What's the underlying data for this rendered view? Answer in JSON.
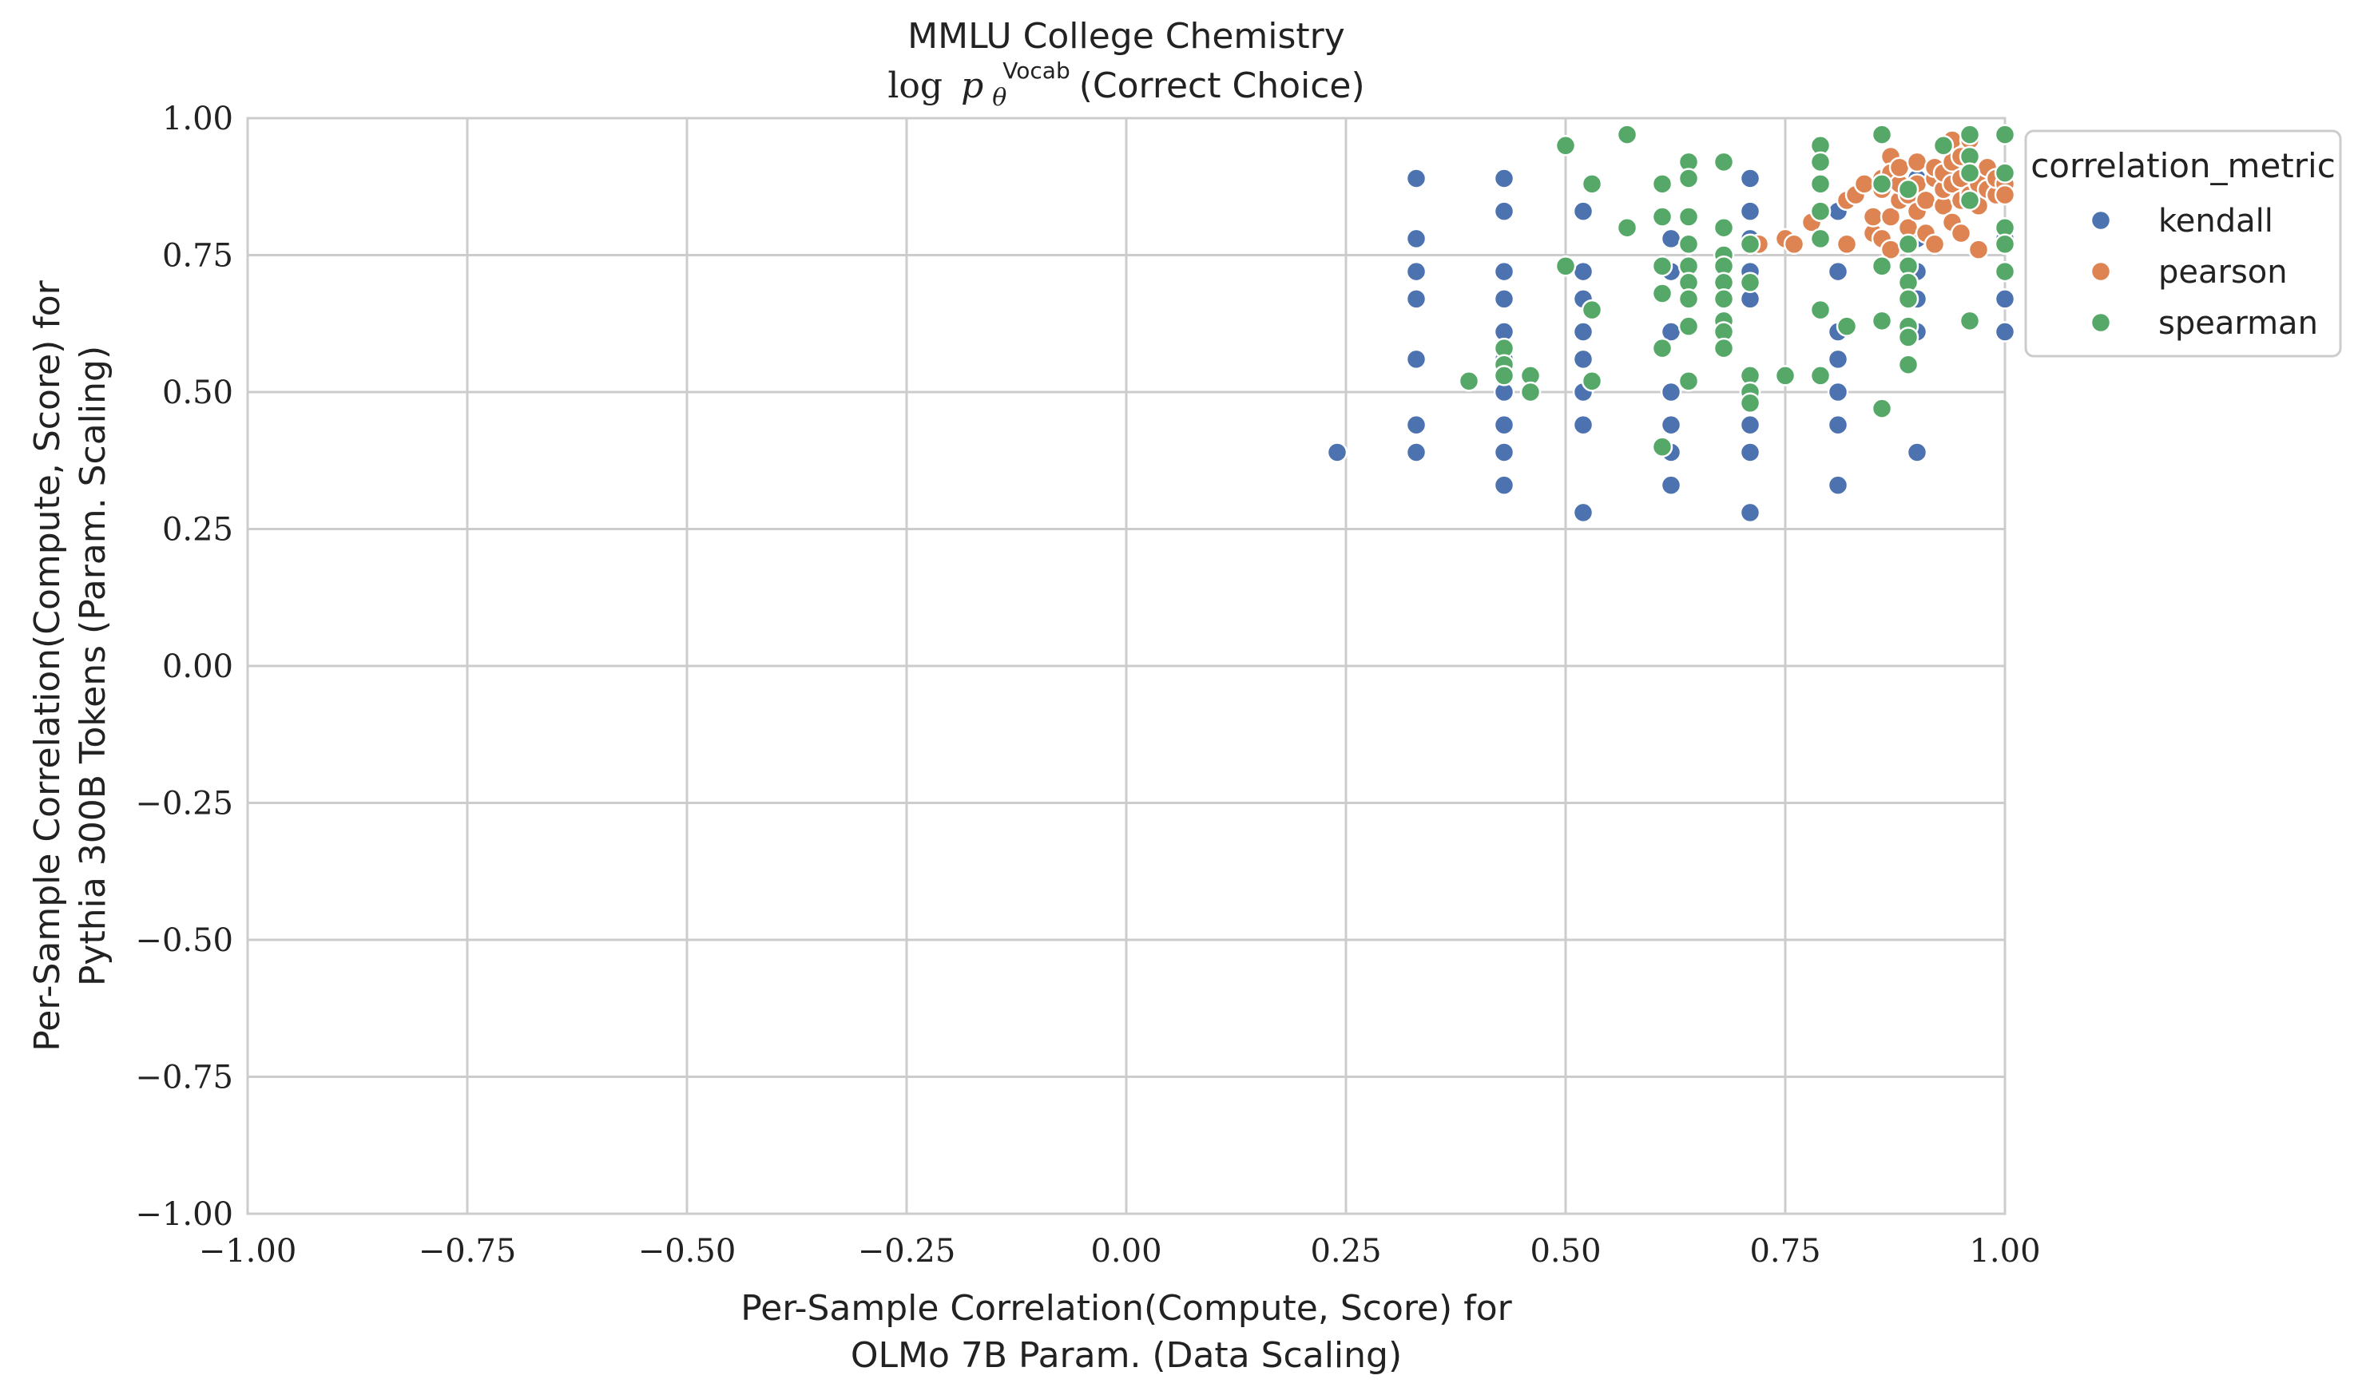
{
  "chart_data": {
    "type": "scatter",
    "title_line1": "MMLU College Chemistry",
    "title_log": "log",
    "title_p": "p",
    "title_sub": "θ",
    "title_sup": "Vocab",
    "title_tail": "(Correct Choice)",
    "xlabel_line1": "Per-Sample Correlation(Compute, Score) for",
    "xlabel_line2": "OLMo 7B Param. (Data Scaling)",
    "ylabel_line1": "Per-Sample Correlation(Compute, Score) for",
    "ylabel_line2": "Pythia 300B Tokens (Param. Scaling)",
    "xlim": [
      -1.0,
      1.0
    ],
    "ylim": [
      -1.0,
      1.0
    ],
    "xticks": [
      "−1.00",
      "−0.75",
      "−0.50",
      "−0.25",
      "0.00",
      "0.25",
      "0.50",
      "0.75",
      "1.00"
    ],
    "yticks": [
      "−1.00",
      "−0.75",
      "−0.50",
      "−0.25",
      "0.00",
      "0.25",
      "0.50",
      "0.75",
      "1.00"
    ],
    "grid": true,
    "legend_title": "correlation_metric",
    "legend_placement": "outside-right-top",
    "series": [
      {
        "name": "kendall",
        "color": "#4c72b0",
        "points": [
          [
            0.24,
            0.39
          ],
          [
            0.33,
            0.89
          ],
          [
            0.33,
            0.78
          ],
          [
            0.33,
            0.72
          ],
          [
            0.33,
            0.67
          ],
          [
            0.33,
            0.56
          ],
          [
            0.33,
            0.44
          ],
          [
            0.33,
            0.39
          ],
          [
            0.43,
            0.89
          ],
          [
            0.43,
            0.83
          ],
          [
            0.43,
            0.72
          ],
          [
            0.43,
            0.67
          ],
          [
            0.43,
            0.61
          ],
          [
            0.43,
            0.56
          ],
          [
            0.43,
            0.5
          ],
          [
            0.43,
            0.44
          ],
          [
            0.43,
            0.39
          ],
          [
            0.43,
            0.33
          ],
          [
            0.52,
            0.83
          ],
          [
            0.52,
            0.72
          ],
          [
            0.52,
            0.67
          ],
          [
            0.52,
            0.61
          ],
          [
            0.52,
            0.56
          ],
          [
            0.52,
            0.5
          ],
          [
            0.52,
            0.44
          ],
          [
            0.52,
            0.28
          ],
          [
            0.62,
            0.78
          ],
          [
            0.62,
            0.72
          ],
          [
            0.62,
            0.61
          ],
          [
            0.62,
            0.5
          ],
          [
            0.62,
            0.44
          ],
          [
            0.62,
            0.39
          ],
          [
            0.62,
            0.33
          ],
          [
            0.71,
            0.89
          ],
          [
            0.71,
            0.83
          ],
          [
            0.71,
            0.78
          ],
          [
            0.71,
            0.72
          ],
          [
            0.71,
            0.67
          ],
          [
            0.71,
            0.5
          ],
          [
            0.71,
            0.44
          ],
          [
            0.71,
            0.39
          ],
          [
            0.71,
            0.28
          ],
          [
            0.81,
            0.83
          ],
          [
            0.81,
            0.72
          ],
          [
            0.81,
            0.61
          ],
          [
            0.81,
            0.56
          ],
          [
            0.81,
            0.5
          ],
          [
            0.81,
            0.44
          ],
          [
            0.81,
            0.33
          ],
          [
            0.9,
            0.89
          ],
          [
            0.9,
            0.83
          ],
          [
            0.9,
            0.78
          ],
          [
            0.9,
            0.72
          ],
          [
            0.9,
            0.67
          ],
          [
            0.9,
            0.61
          ],
          [
            0.9,
            0.39
          ],
          [
            1.0,
            0.89
          ],
          [
            1.0,
            0.78
          ],
          [
            1.0,
            0.67
          ],
          [
            1.0,
            0.61
          ]
        ]
      },
      {
        "name": "pearson",
        "color": "#dd8452",
        "points": [
          [
            0.72,
            0.77
          ],
          [
            0.75,
            0.78
          ],
          [
            0.76,
            0.77
          ],
          [
            0.78,
            0.81
          ],
          [
            0.79,
            0.83
          ],
          [
            0.82,
            0.77
          ],
          [
            0.82,
            0.85
          ],
          [
            0.83,
            0.86
          ],
          [
            0.84,
            0.88
          ],
          [
            0.85,
            0.79
          ],
          [
            0.85,
            0.82
          ],
          [
            0.86,
            0.78
          ],
          [
            0.86,
            0.87
          ],
          [
            0.86,
            0.89
          ],
          [
            0.87,
            0.93
          ],
          [
            0.87,
            0.9
          ],
          [
            0.87,
            0.82
          ],
          [
            0.87,
            0.76
          ],
          [
            0.88,
            0.85
          ],
          [
            0.88,
            0.88
          ],
          [
            0.88,
            0.91
          ],
          [
            0.89,
            0.8
          ],
          [
            0.89,
            0.86
          ],
          [
            0.9,
            0.88
          ],
          [
            0.9,
            0.92
          ],
          [
            0.9,
            0.83
          ],
          [
            0.91,
            0.79
          ],
          [
            0.91,
            0.85
          ],
          [
            0.92,
            0.89
          ],
          [
            0.92,
            0.91
          ],
          [
            0.92,
            0.77
          ],
          [
            0.93,
            0.84
          ],
          [
            0.93,
            0.87
          ],
          [
            0.93,
            0.9
          ],
          [
            0.94,
            0.88
          ],
          [
            0.94,
            0.92
          ],
          [
            0.94,
            0.96
          ],
          [
            0.94,
            0.81
          ],
          [
            0.95,
            0.85
          ],
          [
            0.95,
            0.89
          ],
          [
            0.95,
            0.93
          ],
          [
            0.95,
            0.79
          ],
          [
            0.96,
            0.86
          ],
          [
            0.96,
            0.9
          ],
          [
            0.96,
            0.96
          ],
          [
            0.97,
            0.84
          ],
          [
            0.97,
            0.76
          ],
          [
            0.97,
            0.88
          ],
          [
            0.98,
            0.87
          ],
          [
            0.98,
            0.91
          ],
          [
            0.99,
            0.86
          ],
          [
            0.99,
            0.89
          ],
          [
            1.0,
            0.88
          ],
          [
            1.0,
            0.86
          ]
        ]
      },
      {
        "name": "spearman",
        "color": "#55a868",
        "points": [
          [
            0.39,
            0.52
          ],
          [
            0.43,
            0.58
          ],
          [
            0.43,
            0.55
          ],
          [
            0.43,
            0.53
          ],
          [
            0.46,
            0.53
          ],
          [
            0.46,
            0.5
          ],
          [
            0.5,
            0.95
          ],
          [
            0.5,
            0.73
          ],
          [
            0.53,
            0.88
          ],
          [
            0.53,
            0.65
          ],
          [
            0.53,
            0.52
          ],
          [
            0.57,
            0.97
          ],
          [
            0.57,
            0.8
          ],
          [
            0.61,
            0.88
          ],
          [
            0.61,
            0.82
          ],
          [
            0.61,
            0.73
          ],
          [
            0.61,
            0.68
          ],
          [
            0.61,
            0.58
          ],
          [
            0.61,
            0.4
          ],
          [
            0.64,
            0.92
          ],
          [
            0.64,
            0.89
          ],
          [
            0.64,
            0.82
          ],
          [
            0.64,
            0.77
          ],
          [
            0.64,
            0.73
          ],
          [
            0.64,
            0.7
          ],
          [
            0.64,
            0.67
          ],
          [
            0.64,
            0.62
          ],
          [
            0.64,
            0.52
          ],
          [
            0.68,
            0.92
          ],
          [
            0.68,
            0.8
          ],
          [
            0.68,
            0.75
          ],
          [
            0.68,
            0.73
          ],
          [
            0.68,
            0.7
          ],
          [
            0.68,
            0.67
          ],
          [
            0.68,
            0.63
          ],
          [
            0.68,
            0.61
          ],
          [
            0.68,
            0.58
          ],
          [
            0.71,
            0.77
          ],
          [
            0.71,
            0.7
          ],
          [
            0.71,
            0.53
          ],
          [
            0.71,
            0.5
          ],
          [
            0.71,
            0.48
          ],
          [
            0.75,
            0.53
          ],
          [
            0.79,
            0.95
          ],
          [
            0.79,
            0.92
          ],
          [
            0.79,
            0.88
          ],
          [
            0.79,
            0.83
          ],
          [
            0.79,
            0.78
          ],
          [
            0.79,
            0.65
          ],
          [
            0.79,
            0.53
          ],
          [
            0.82,
            0.62
          ],
          [
            0.86,
            0.97
          ],
          [
            0.86,
            0.88
          ],
          [
            0.86,
            0.73
          ],
          [
            0.86,
            0.63
          ],
          [
            0.86,
            0.47
          ],
          [
            0.89,
            0.87
          ],
          [
            0.89,
            0.77
          ],
          [
            0.89,
            0.73
          ],
          [
            0.89,
            0.7
          ],
          [
            0.89,
            0.67
          ],
          [
            0.89,
            0.62
          ],
          [
            0.89,
            0.6
          ],
          [
            0.89,
            0.55
          ],
          [
            0.93,
            0.95
          ],
          [
            0.96,
            0.97
          ],
          [
            0.96,
            0.93
          ],
          [
            0.96,
            0.9
          ],
          [
            0.96,
            0.85
          ],
          [
            0.96,
            0.63
          ],
          [
            1.0,
            0.97
          ],
          [
            1.0,
            0.9
          ],
          [
            1.0,
            0.8
          ],
          [
            1.0,
            0.77
          ],
          [
            1.0,
            0.72
          ]
        ]
      }
    ]
  }
}
